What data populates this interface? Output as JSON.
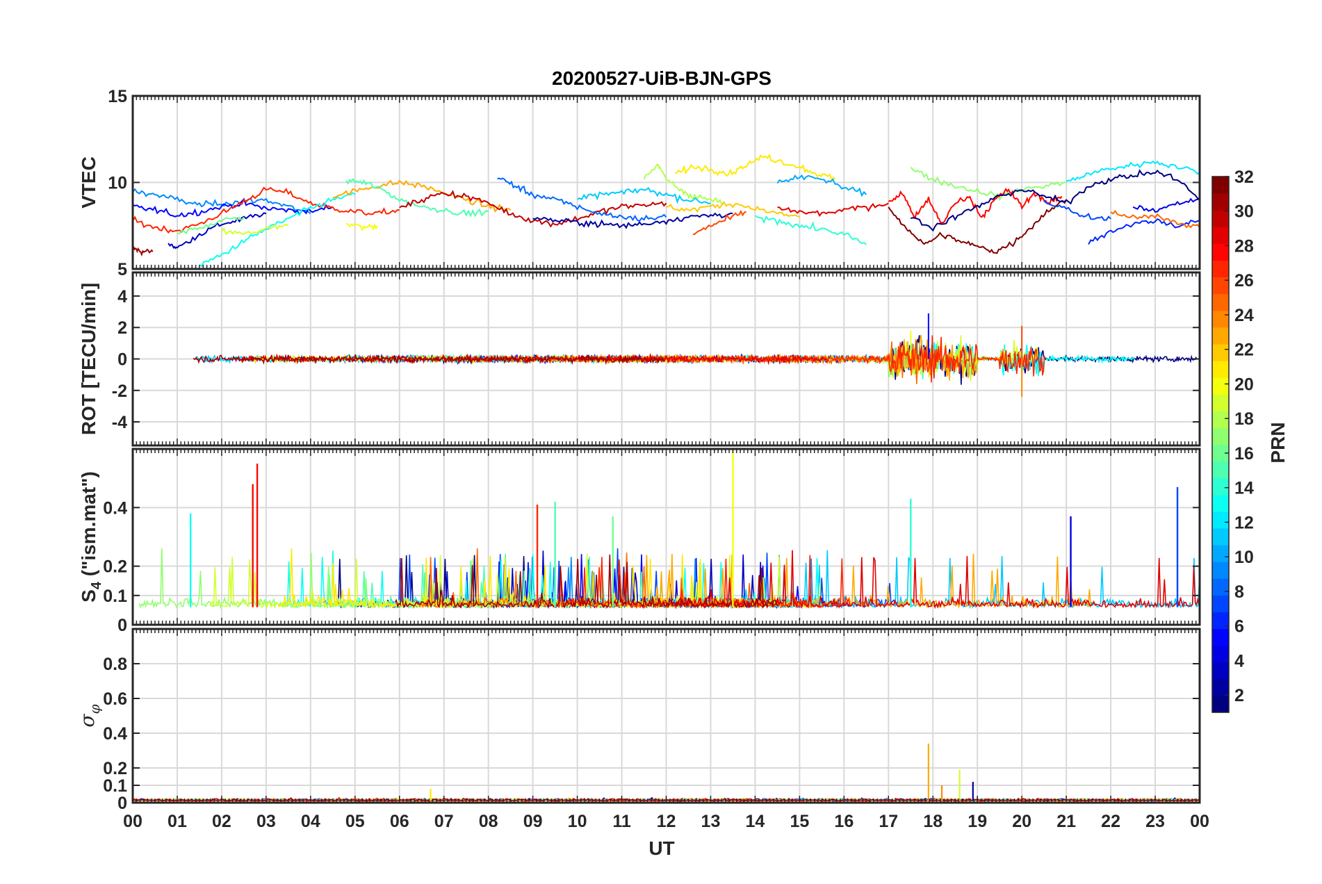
{
  "chart_data": {
    "title": "20200527-UiB-BJN-GPS",
    "type": "line",
    "x": {
      "label": "UT",
      "range_hours": [
        0,
        24
      ],
      "tick_labels": [
        "00",
        "01",
        "02",
        "03",
        "04",
        "05",
        "06",
        "07",
        "08",
        "09",
        "10",
        "11",
        "12",
        "13",
        "14",
        "15",
        "16",
        "17",
        "18",
        "19",
        "20",
        "21",
        "22",
        "23",
        "00"
      ]
    },
    "panels": [
      {
        "id": "vtec",
        "ylabel": "VTEC",
        "ylim": [
          5,
          15
        ],
        "yticks": [
          5,
          10,
          15
        ],
        "ytick_labels": [
          "5",
          "10",
          "15"
        ],
        "grid": true,
        "approx_traces": [
          {
            "prn": 31,
            "t": [
              0,
              0.2,
              0.45
            ],
            "v": [
              6.2,
              6.0,
              6.0
            ]
          },
          {
            "prn": 9,
            "t": [
              0,
              0.5,
              1.0,
              1.5,
              2.0,
              2.5,
              3.0,
              3.5,
              4.0
            ],
            "v": [
              9.5,
              9.3,
              9.0,
              8.7,
              8.8,
              8.9,
              9.0,
              8.6,
              8.2
            ]
          },
          {
            "prn": 5,
            "t": [
              0,
              0.5,
              1.0,
              1.5,
              2.0,
              2.5,
              3.0,
              3.5,
              4.0,
              4.5
            ],
            "v": [
              8.6,
              8.4,
              8.1,
              8.3,
              8.6,
              8.8,
              8.5,
              8.4,
              8.3,
              8.6
            ]
          },
          {
            "prn": 3,
            "t": [
              0.8,
              1.0,
              1.5,
              2.0,
              2.5,
              3.0
            ],
            "v": [
              6.5,
              6.2,
              7.0,
              7.6,
              7.9,
              8.2
            ]
          },
          {
            "prn": 27,
            "t": [
              0,
              0.5,
              1.0,
              1.5,
              2.0,
              2.5,
              3.0,
              3.5,
              4.0,
              4.5,
              5.0,
              5.5,
              6.0
            ],
            "v": [
              7.8,
              7.4,
              7.2,
              7.6,
              8.2,
              8.9,
              9.6,
              9.4,
              8.8,
              8.5,
              8.3,
              8.2,
              8.4
            ]
          },
          {
            "prn": 13,
            "t": [
              1.5,
              2.0,
              2.5,
              3.0,
              3.5,
              4.0,
              4.5,
              5.0
            ],
            "v": [
              5.2,
              5.8,
              6.6,
              7.3,
              7.9,
              8.5,
              9.0,
              9.3
            ]
          },
          {
            "prn": 19,
            "t": [
              2.0,
              2.5,
              3.0,
              3.5
            ],
            "v": [
              7.2,
              7.0,
              7.3,
              7.5
            ]
          },
          {
            "prn": 16,
            "t": [
              1.0,
              1.5,
              2.0,
              2.5
            ],
            "v": [
              7.0,
              7.4,
              7.8,
              8.0
            ]
          },
          {
            "prn": 20,
            "t": [
              4.8,
              5.2,
              5.5
            ],
            "v": [
              7.6,
              7.4,
              7.5
            ]
          },
          {
            "prn": 23,
            "t": [
              4.5,
              5.0,
              5.5,
              6.0,
              6.5,
              7.0,
              7.5,
              8.0,
              8.5
            ],
            "v": [
              9.2,
              9.5,
              9.8,
              10.0,
              9.8,
              9.4,
              9.0,
              8.6,
              8.4
            ]
          },
          {
            "prn": 15,
            "t": [
              4.8,
              5.2,
              5.6,
              6.0,
              6.5,
              7.0,
              7.5,
              8.0
            ],
            "v": [
              10.1,
              10.0,
              9.6,
              9.0,
              8.6,
              8.4,
              8.2,
              8.3
            ]
          },
          {
            "prn": 30,
            "t": [
              6.0,
              6.5,
              7.0,
              7.5,
              8.0,
              8.5,
              9.0,
              9.5,
              10.0,
              10.5,
              11.0,
              11.5,
              12.0
            ],
            "v": [
              8.5,
              9.0,
              9.4,
              9.2,
              8.8,
              8.2,
              7.8,
              7.6,
              7.9,
              8.3,
              8.6,
              8.7,
              8.8
            ]
          },
          {
            "prn": 8,
            "t": [
              8.2,
              8.6,
              9.0,
              9.5,
              10.0,
              10.5,
              11.0,
              11.5,
              12.0
            ],
            "v": [
              10.3,
              9.8,
              9.3,
              9.0,
              8.6,
              8.2,
              8.0,
              7.9,
              8.0
            ]
          },
          {
            "prn": 2,
            "t": [
              9.0,
              9.5,
              10.0,
              10.5,
              11.0,
              11.5,
              12.0,
              12.5,
              13.0,
              13.5
            ],
            "v": [
              8.0,
              7.8,
              7.7,
              7.6,
              7.5,
              7.6,
              7.8,
              8.0,
              8.1,
              8.2
            ]
          },
          {
            "prn": 11,
            "t": [
              10.0,
              10.5,
              11.0,
              11.5,
              12.0,
              12.5,
              13.0
            ],
            "v": [
              9.0,
              9.3,
              9.4,
              9.6,
              9.3,
              9.0,
              8.8
            ]
          },
          {
            "prn": 18,
            "t": [
              11.5,
              11.8,
              12.0,
              12.3,
              12.6,
              13.0,
              13.3
            ],
            "v": [
              10.3,
              11.0,
              10.2,
              9.6,
              9.2,
              9.0,
              8.8
            ]
          },
          {
            "prn": 21,
            "t": [
              12.2,
              12.6,
              13.0,
              13.4,
              13.8,
              14.2,
              14.6,
              15.0,
              15.4,
              15.8
            ],
            "v": [
              10.5,
              10.9,
              10.8,
              10.5,
              11.0,
              11.5,
              11.2,
              10.9,
              10.5,
              10.2
            ]
          },
          {
            "prn": 22,
            "t": [
              12.0,
              12.5,
              13.0,
              13.5,
              14.0,
              14.5,
              15.0
            ],
            "v": [
              8.6,
              8.4,
              8.6,
              8.8,
              8.5,
              8.2,
              8.0
            ]
          },
          {
            "prn": 26,
            "t": [
              12.6,
              13.0,
              13.4,
              13.8
            ],
            "v": [
              7.0,
              7.5,
              7.9,
              8.3
            ]
          },
          {
            "prn": 10,
            "t": [
              14.5,
              15.0,
              15.5,
              16.0,
              16.5
            ],
            "v": [
              10.0,
              10.3,
              10.2,
              9.7,
              9.3
            ]
          },
          {
            "prn": 14,
            "t": [
              14.0,
              14.5,
              15.0,
              15.5,
              16.0,
              16.5
            ],
            "v": [
              8.0,
              7.8,
              7.5,
              7.3,
              7.0,
              6.4
            ]
          },
          {
            "prn": 29,
            "t": [
              14.5,
              15.0,
              15.5,
              16.0,
              16.5,
              17.0
            ],
            "v": [
              8.5,
              8.3,
              8.2,
              8.4,
              8.6,
              8.8
            ]
          },
          {
            "prn": 17,
            "t": [
              17.5,
              18.0,
              18.5,
              19.0,
              19.5,
              20.0,
              20.5,
              21.0
            ],
            "v": [
              10.8,
              10.2,
              9.8,
              9.5,
              9.2,
              9.6,
              9.8,
              10.0
            ]
          },
          {
            "prn": 28,
            "t": [
              17.0,
              17.3,
              17.6,
              17.9,
              18.2,
              18.5,
              18.8,
              19.1,
              19.4,
              19.7,
              20.0,
              20.3,
              20.6,
              20.9
            ],
            "v": [
              8.8,
              9.4,
              8.0,
              9.0,
              7.6,
              8.8,
              9.2,
              8.0,
              9.0,
              9.6,
              8.6,
              9.4,
              8.8,
              9.2
            ]
          },
          {
            "prn": 32,
            "t": [
              17.0,
              17.4,
              17.8,
              18.2,
              18.6,
              19.0,
              19.4,
              19.8,
              20.2,
              20.6,
              21.0
            ],
            "v": [
              8.5,
              7.4,
              6.4,
              7.0,
              6.6,
              6.3,
              6.0,
              6.5,
              7.4,
              8.4,
              9.0
            ]
          },
          {
            "prn": 1,
            "t": [
              17.5,
              18.0,
              18.5,
              19.0,
              19.5,
              20.0,
              20.5,
              21.0,
              21.5,
              22.0,
              22.5,
              23.0,
              23.5,
              24.0
            ],
            "v": [
              8.0,
              7.4,
              8.0,
              8.6,
              9.2,
              9.6,
              9.2,
              8.8,
              9.8,
              10.2,
              10.4,
              10.6,
              10.2,
              9.0
            ]
          },
          {
            "prn": 12,
            "t": [
              21.0,
              21.5,
              22.0,
              22.5,
              23.0,
              23.5,
              24.0
            ],
            "v": [
              10.0,
              10.5,
              10.8,
              11.0,
              11.2,
              10.9,
              10.6
            ]
          },
          {
            "prn": 6,
            "t": [
              21.5,
              22.0,
              22.5,
              23.0,
              23.5,
              24.0
            ],
            "v": [
              6.5,
              7.2,
              7.6,
              7.8,
              7.5,
              7.8
            ]
          },
          {
            "prn": 25,
            "t": [
              22.0,
              22.5,
              23.0,
              23.5,
              24.0
            ],
            "v": [
              8.2,
              8.0,
              8.1,
              7.6,
              7.4
            ]
          },
          {
            "prn": 4,
            "t": [
              22.5,
              23.0,
              23.5,
              24.0
            ],
            "v": [
              8.6,
              8.4,
              8.8,
              9.0
            ]
          },
          {
            "prn": 7,
            "t": [
              20.5,
              21.0,
              21.5,
              22.0
            ],
            "v": [
              8.8,
              8.5,
              8.0,
              7.9
            ]
          }
        ]
      },
      {
        "id": "rot",
        "ylabel": "ROT [TECU/min]",
        "ylim": [
          -5.5,
          5.5
        ],
        "yticks": [
          -4,
          -2,
          0,
          2,
          4
        ],
        "ytick_labels": [
          "-4",
          "-2",
          "0",
          "2",
          "4"
        ],
        "grid": true,
        "approx_activity_windows": [
          {
            "t_start": 0,
            "t_end": 17,
            "peak_abs": 0.5
          },
          {
            "t_start": 17,
            "t_end": 19,
            "peak_abs": 3.0
          },
          {
            "t_start": 19.5,
            "t_end": 20.5,
            "peak_abs": 2.4
          },
          {
            "t_start": 20.5,
            "t_end": 24,
            "peak_abs": 0.4
          }
        ]
      },
      {
        "id": "s4",
        "ylabel": "S4 (\"ism.mat\")",
        "ylabel_main": "S",
        "ylabel_sub": "4",
        "ylabel_rest": " (\"ism.mat\")",
        "ylim": [
          0,
          0.6
        ],
        "yticks": [
          0,
          0.1,
          0.2,
          0.4
        ],
        "ytick_labels": [
          "0",
          "0.1",
          "0.2",
          "0.4"
        ],
        "grid": true,
        "approx_spikes": [
          {
            "t": 2.8,
            "v": 0.55,
            "prn": 28
          },
          {
            "t": 2.7,
            "v": 0.48,
            "prn": 28
          },
          {
            "t": 13.5,
            "v": 0.6,
            "prn": 20
          },
          {
            "t": 9.1,
            "v": 0.41,
            "prn": 27
          },
          {
            "t": 9.5,
            "v": 0.42,
            "prn": 15
          },
          {
            "t": 23.5,
            "v": 0.47,
            "prn": 7
          },
          {
            "t": 17.5,
            "v": 0.43,
            "prn": 14
          },
          {
            "t": 21.1,
            "v": 0.37,
            "prn": 4
          },
          {
            "t": 1.3,
            "v": 0.38,
            "prn": 13
          },
          {
            "t": 10.8,
            "v": 0.37,
            "prn": 16
          }
        ]
      },
      {
        "id": "sigma_phi",
        "ylabel_symbol": "σ",
        "ylabel_sub": "φ",
        "ylim": [
          0,
          1
        ],
        "yticks": [
          0,
          0.1,
          0.2,
          0.4,
          0.6,
          0.8
        ],
        "ytick_labels": [
          "0",
          "0.1",
          "0.2",
          "0.4",
          "0.6",
          "0.8"
        ],
        "grid": true,
        "approx_spikes": [
          {
            "t": 17.9,
            "v": 0.34,
            "prn": 23
          },
          {
            "t": 18.6,
            "v": 0.19,
            "prn": 19
          },
          {
            "t": 18.9,
            "v": 0.12,
            "prn": 2
          },
          {
            "t": 18.2,
            "v": 0.1,
            "prn": 24
          },
          {
            "t": 6.7,
            "v": 0.08,
            "prn": 21
          }
        ]
      }
    ],
    "colorbar": {
      "label": "PRN",
      "range": [
        1,
        32
      ],
      "tick_values": [
        2,
        4,
        6,
        8,
        10,
        12,
        14,
        16,
        18,
        20,
        22,
        24,
        26,
        28,
        30,
        32
      ],
      "tick_labels": [
        "2",
        "4",
        "6",
        "8",
        "10",
        "12",
        "14",
        "16",
        "18",
        "20",
        "22",
        "24",
        "26",
        "28",
        "30",
        "32"
      ],
      "colormap": "jet"
    }
  }
}
